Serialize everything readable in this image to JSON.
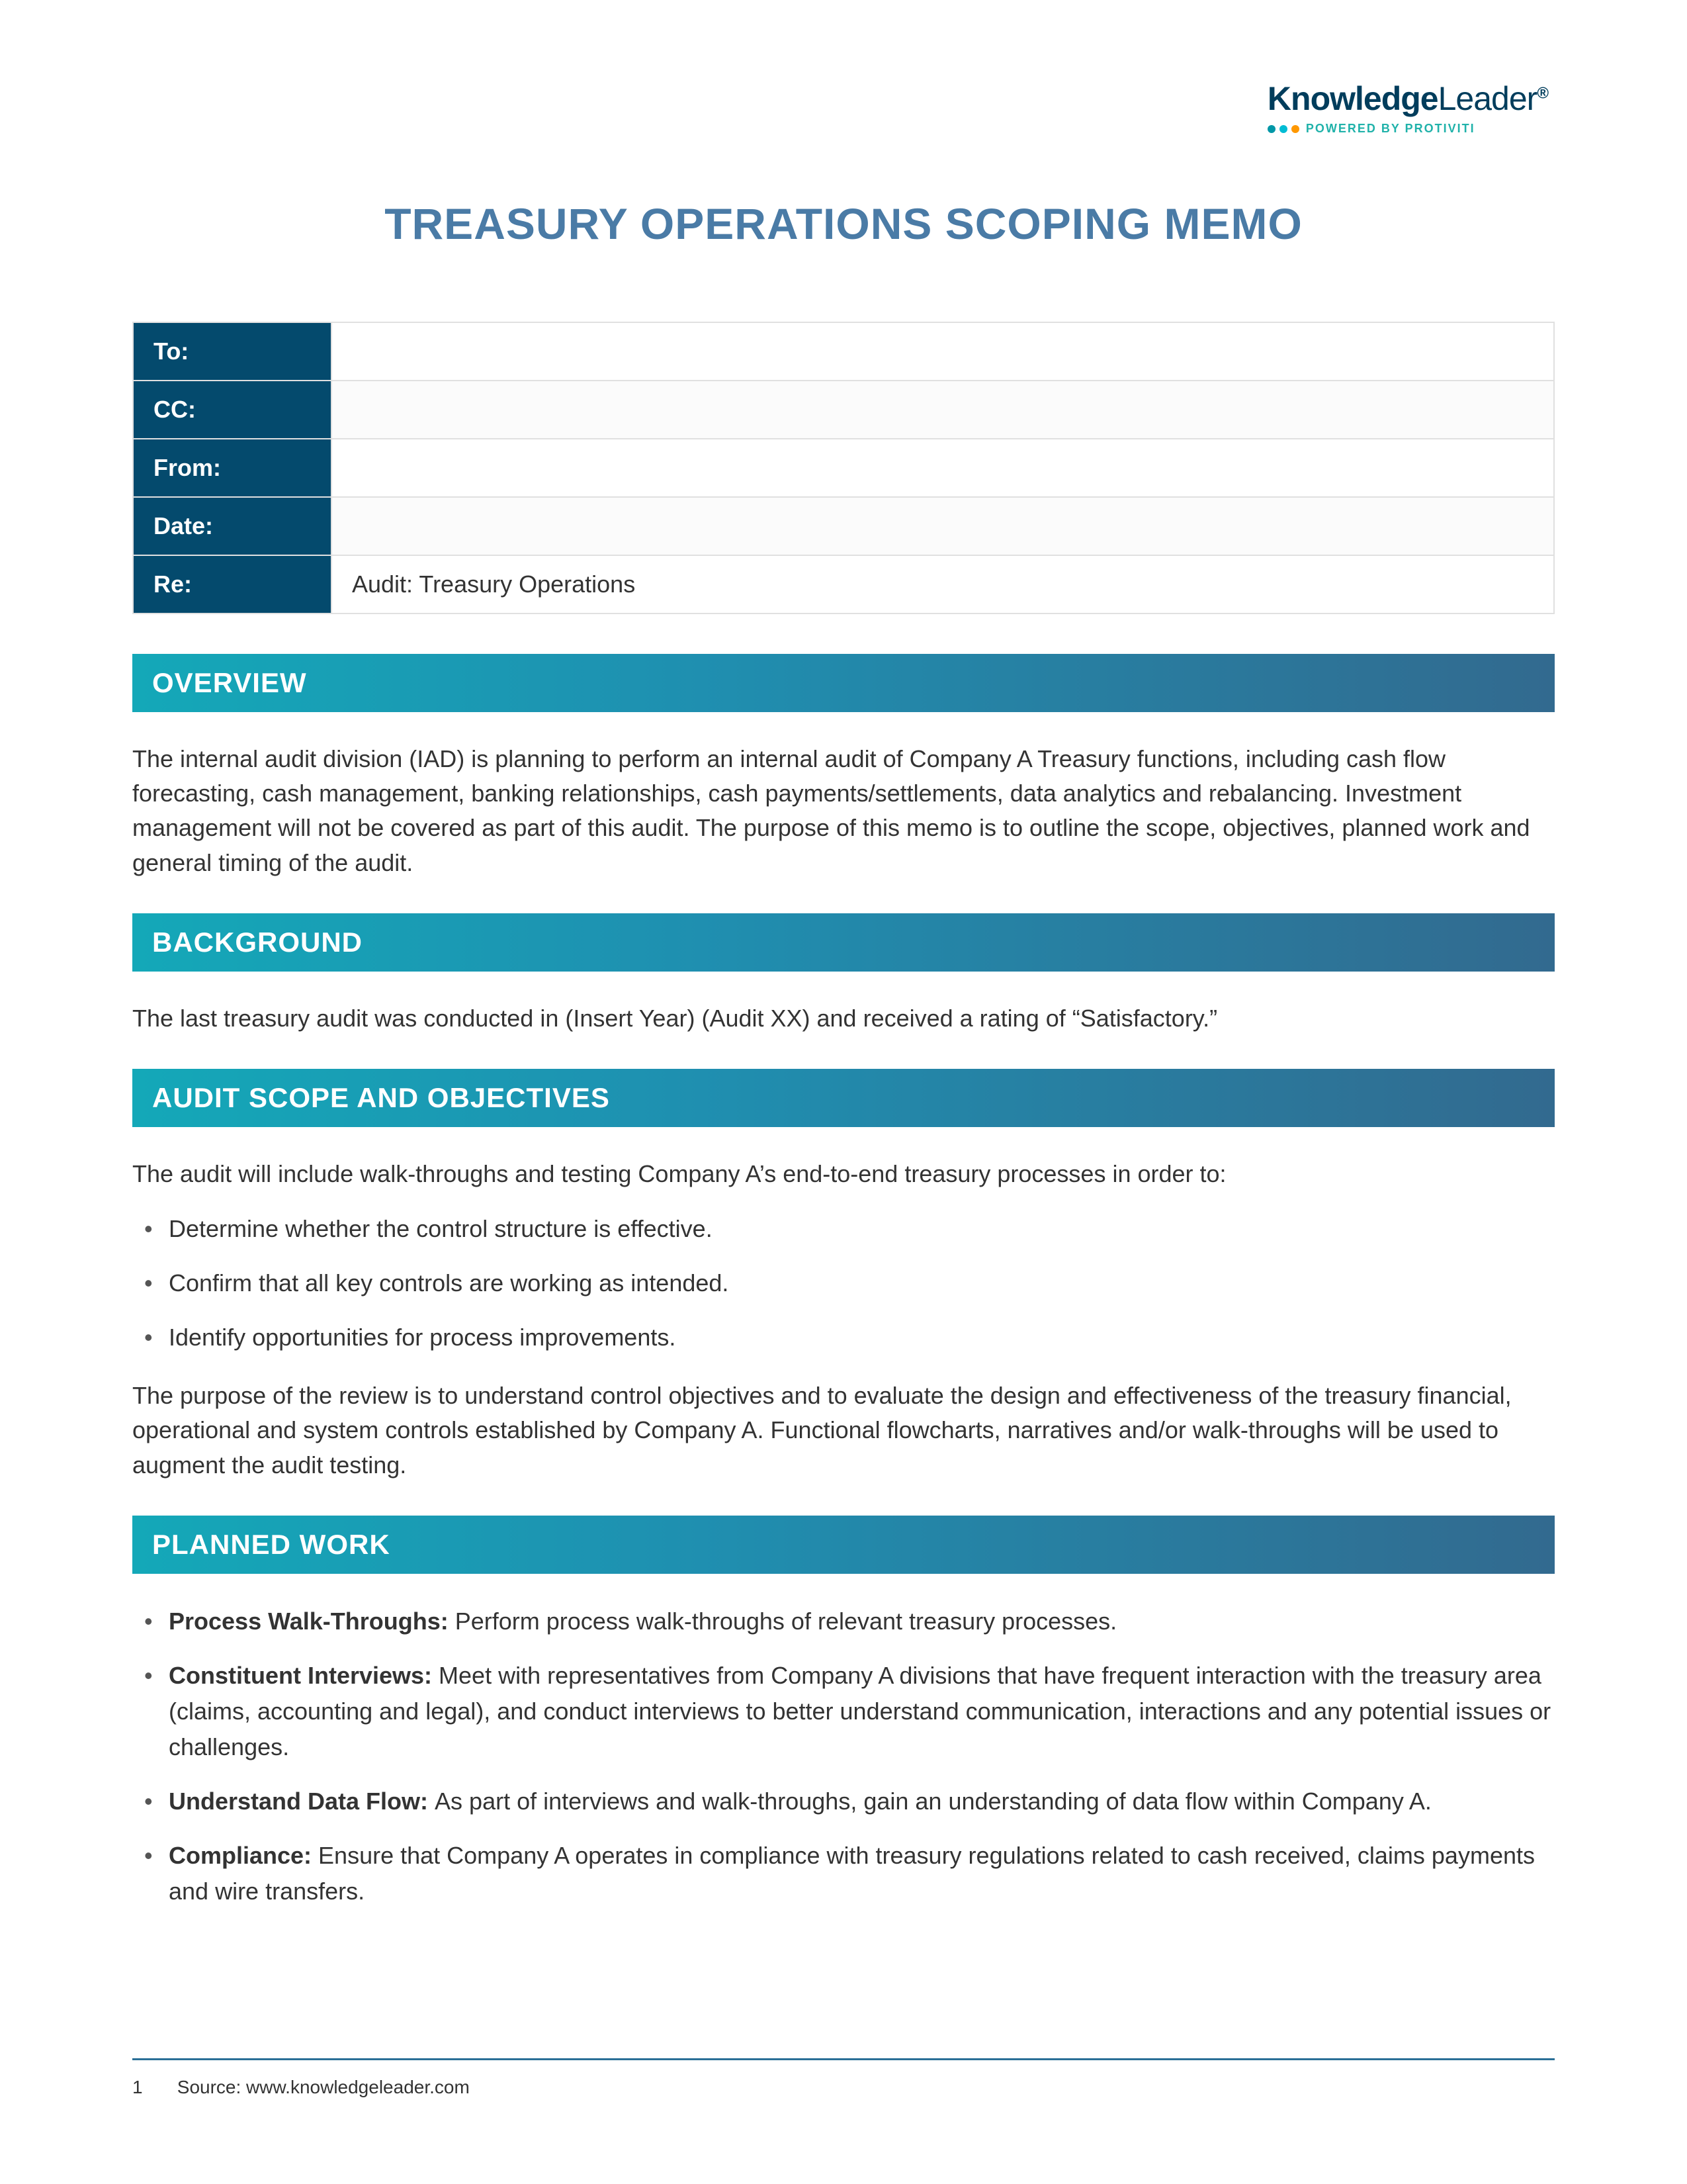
{
  "logo": {
    "brand_bold": "Knowledge",
    "brand_light": "Leader",
    "reg": "®",
    "tagline": "POWERED BY PROTIVITI",
    "dot_colors": [
      "#0097a7",
      "#00bcd4",
      "#ff9800"
    ]
  },
  "title": "TREASURY OPERATIONS SCOPING MEMO",
  "memo_fields": {
    "to_label": "To:",
    "to_value": "",
    "cc_label": "CC:",
    "cc_value": "",
    "from_label": "From:",
    "from_value": "",
    "date_label": "Date:",
    "date_value": "",
    "re_label": "Re:",
    "re_value": "Audit: Treasury Operations"
  },
  "sections": {
    "overview": {
      "heading": "OVERVIEW",
      "text": "The internal audit division (IAD) is planning to perform an internal audit of Company A Treasury functions, including cash flow forecasting, cash management, banking relationships, cash payments/settlements, data analytics and rebalancing. Investment management will not be covered as part of this audit. The purpose of this memo is to outline the scope, objectives, planned work and general timing of the audit."
    },
    "background": {
      "heading": "BACKGROUND",
      "text": "The last treasury audit was conducted in (Insert Year) (Audit XX) and received a rating of “Satisfactory.”"
    },
    "scope": {
      "heading": "AUDIT SCOPE AND OBJECTIVES",
      "intro": "The audit will include walk-throughs and testing Company A’s end-to-end treasury processes in order to:",
      "bullets": [
        "Determine whether the control structure is effective.",
        "Confirm that all key controls are working as intended.",
        "Identify opportunities for process improvements."
      ],
      "outro": "The purpose of the review is to understand control objectives and to evaluate the design and effectiveness of the treasury financial, operational and system controls established by Company A. Functional flowcharts, narratives and/or walk-throughs will be used to augment the audit testing."
    },
    "planned": {
      "heading": "PLANNED WORK",
      "items": [
        {
          "lead": "Process Walk-Throughs: ",
          "rest": "Perform process walk-throughs of relevant treasury processes."
        },
        {
          "lead": "Constituent Interviews: ",
          "rest": "Meet with representatives from Company A divisions that have frequent interaction with the treasury area (claims, accounting and legal), and conduct interviews to better understand communication, interactions and any potential issues or challenges."
        },
        {
          "lead": "Understand Data Flow: ",
          "rest": "As part of interviews and walk-throughs, gain an understanding of data flow within Company A."
        },
        {
          "lead": "Compliance: ",
          "rest": "Ensure that Company A operates in compliance with treasury regulations related to cash received, claims payments and wire transfers."
        }
      ]
    }
  },
  "footer": {
    "page": "1",
    "source": "Source: www.knowledgeleader.com"
  },
  "styling": {
    "title_color": "#4a7ba6",
    "header_label_bg": "#044a6d",
    "section_gradient_from": "#14a8b8",
    "section_gradient_to": "#326a8f",
    "footer_rule_color": "#2a6f97",
    "body_font_size_pt": 27,
    "title_font_size_pt": 50
  }
}
